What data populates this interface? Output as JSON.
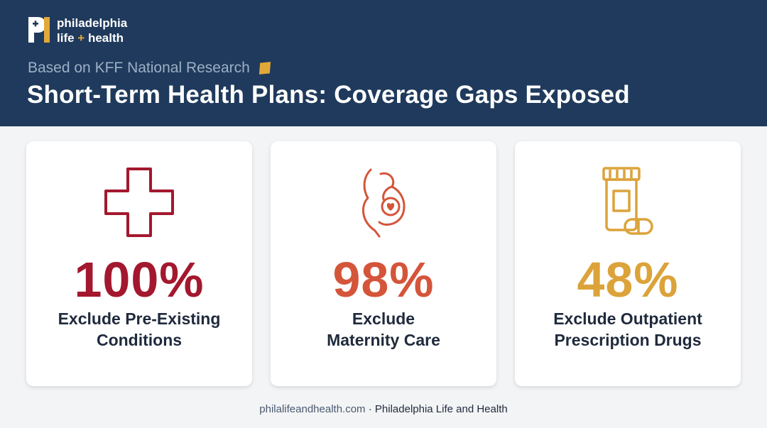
{
  "brand": {
    "logo_line1": "philadelphia",
    "logo_line2_a": "life",
    "logo_line2_plus": "+",
    "logo_line2_b": "health"
  },
  "header": {
    "eyebrow": "Based on KFF National Research",
    "title": "Short-Term Health Plans: Coverage Gaps Exposed"
  },
  "cards": [
    {
      "value": "100%",
      "label_line1": "Exclude Pre-Existing",
      "label_line2": "Conditions",
      "color": "#a3182e",
      "icon": "medical-cross-icon"
    },
    {
      "value": "98%",
      "label_line1": "Exclude",
      "label_line2": "Maternity Care",
      "color": "#d4553a",
      "icon": "pregnancy-icon"
    },
    {
      "value": "48%",
      "label_line1": "Exclude Outpatient",
      "label_line2": "Prescription Drugs",
      "color": "#dba33a",
      "icon": "pill-bottle-icon"
    }
  ],
  "footer": {
    "url": "philalifeandhealth.com",
    "separator": "·",
    "org": "Philadelphia Life and Health"
  },
  "colors": {
    "header_bg": "#1f3a5c",
    "accent": "#e3a83a"
  }
}
